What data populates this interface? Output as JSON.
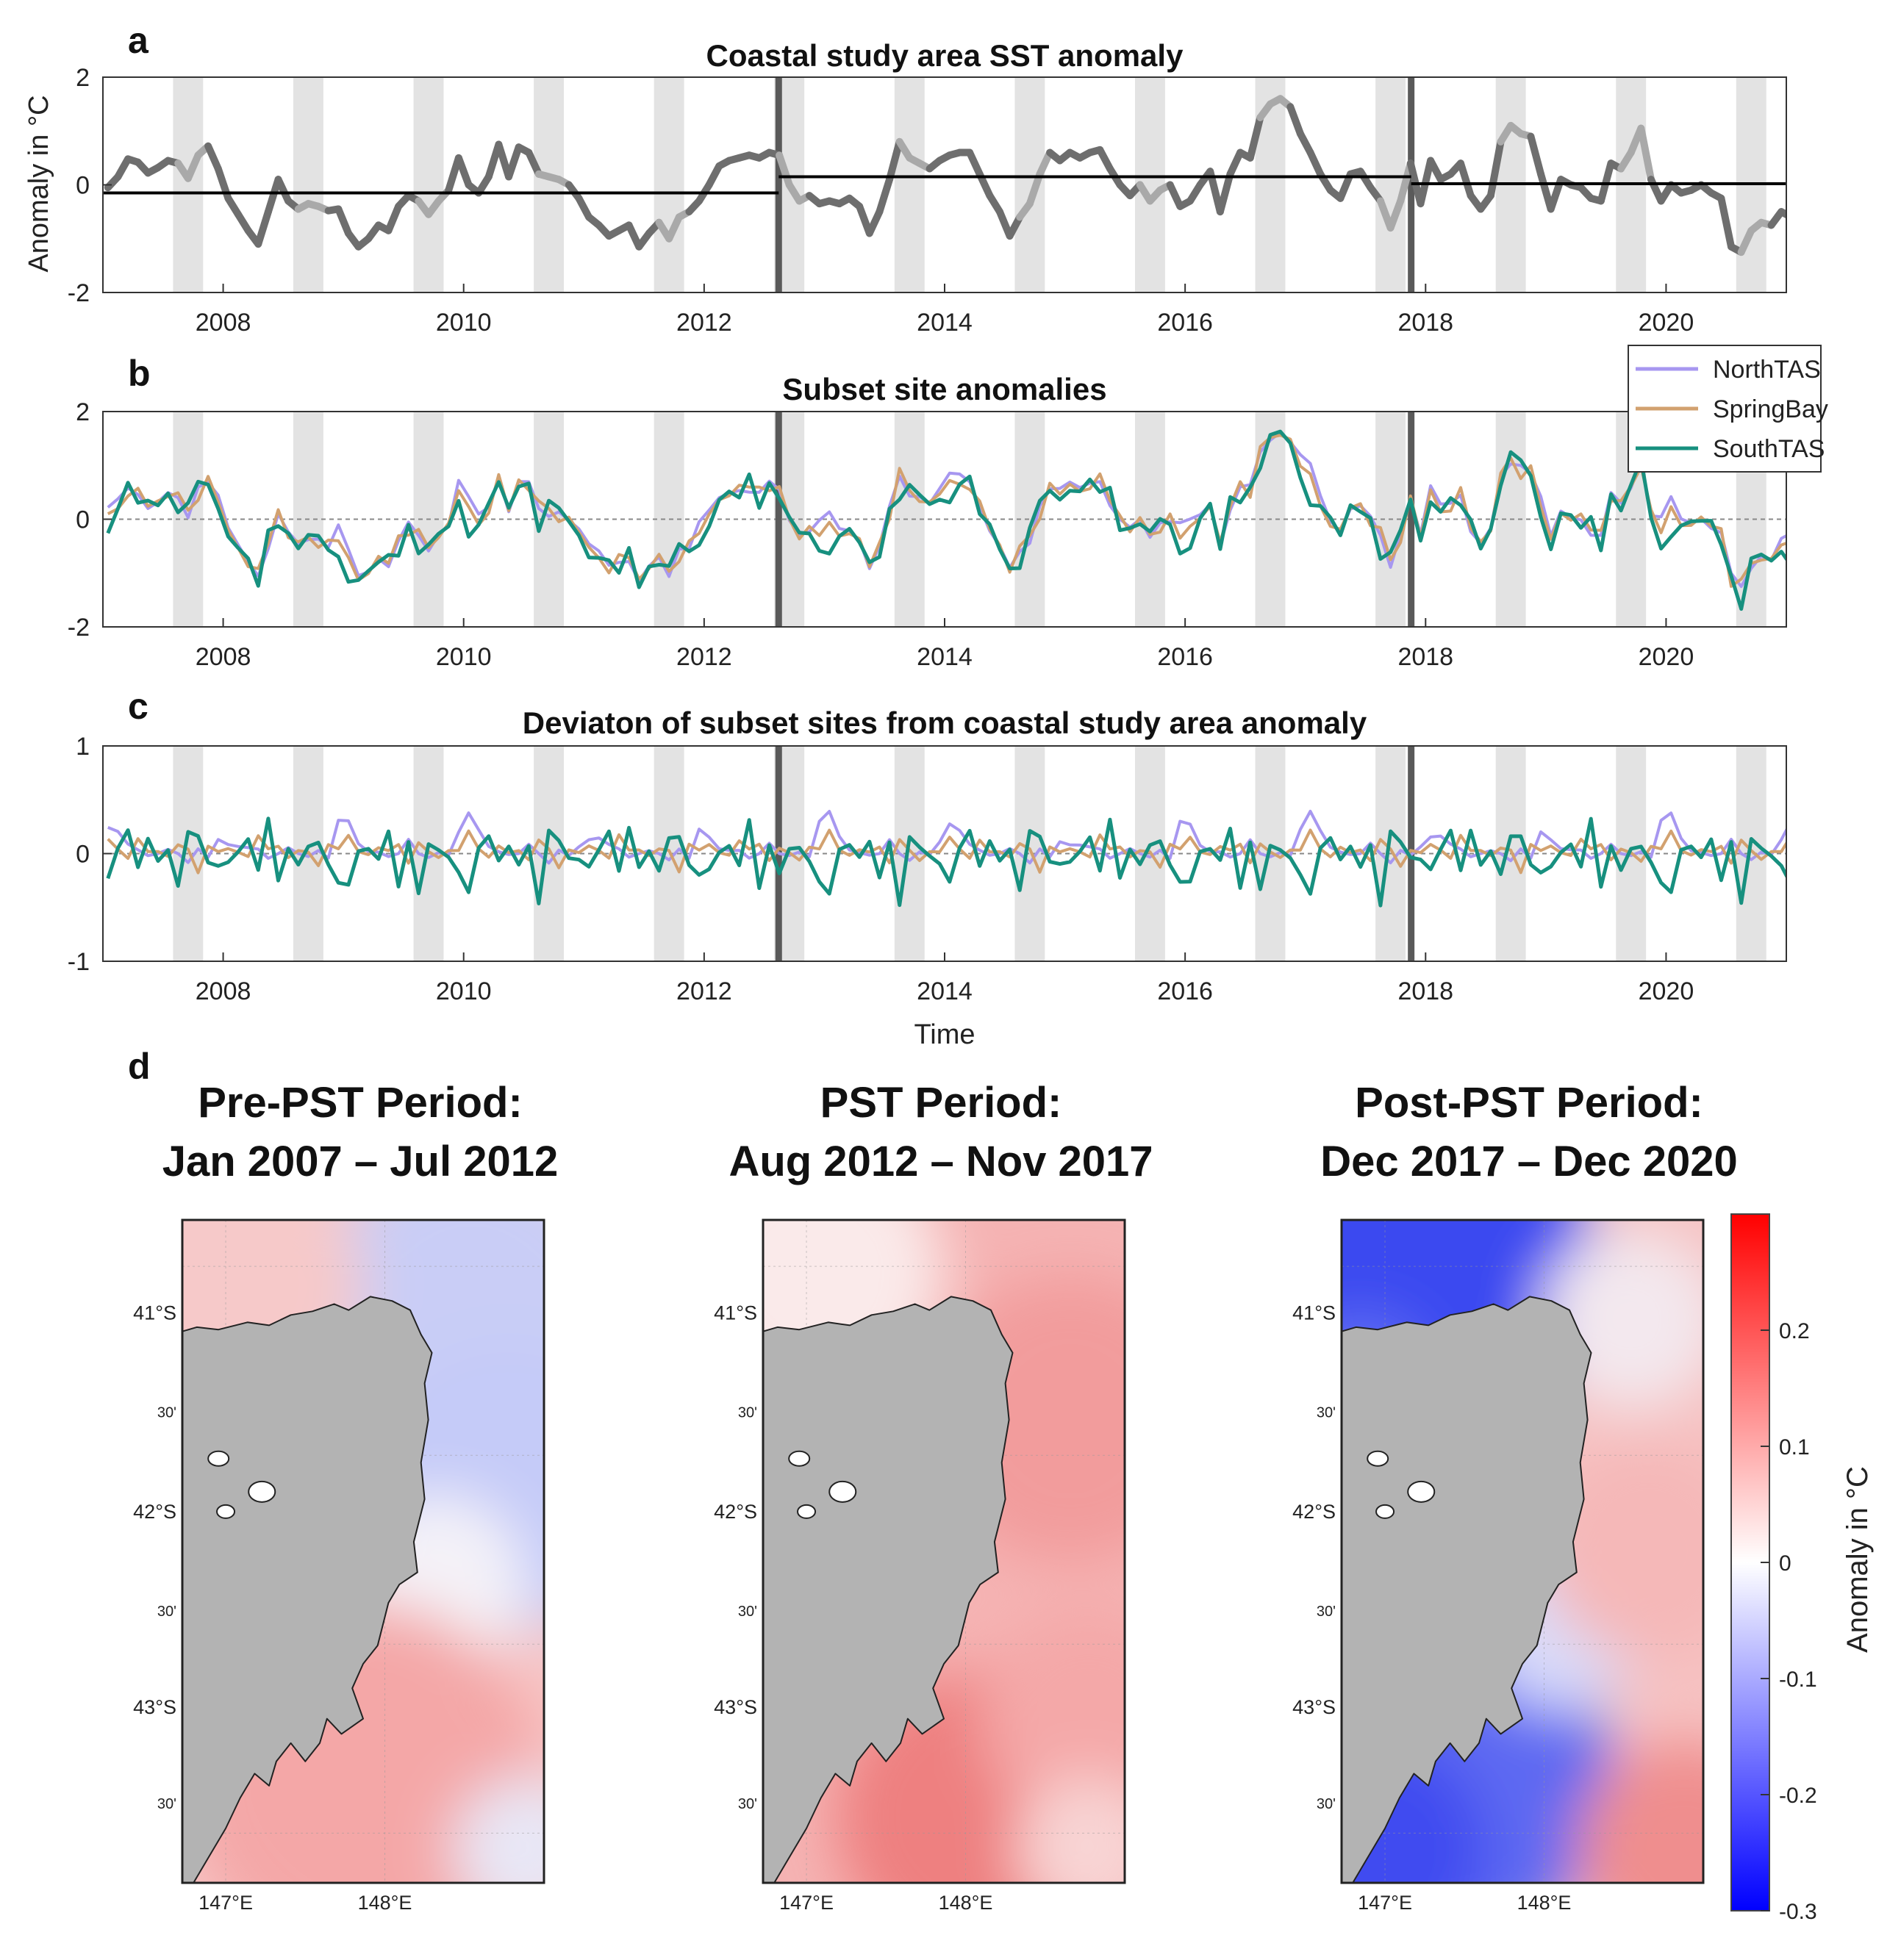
{
  "colors": {
    "coastal": "#6e6e6e",
    "coastal_light": "#a9a9a9",
    "shade": "#e3e3e3",
    "divider": "#5a5a5a",
    "mean": "#000000",
    "north": "#a797f0",
    "spring": "#d2a16f",
    "south": "#17907f",
    "land": "#b3b3b3",
    "cbar_top": "#ff0000",
    "cbar_bottom": "#0000ff"
  },
  "panel_letters": [
    "a",
    "b",
    "c",
    "d"
  ],
  "chart_data": [
    {
      "id": "a",
      "type": "line",
      "title": "Coastal study area SST anomaly",
      "ylabel": "Anomaly in °C",
      "xlim": [
        2007.0,
        2021.0
      ],
      "ylim": [
        -2,
        2
      ],
      "yticks": [
        -2,
        0,
        2
      ],
      "xticks": [
        2008,
        2010,
        2012,
        2014,
        2016,
        2018,
        2020
      ],
      "shaded_months": "Aug–Oct (grey bands each year)",
      "period_dividers": [
        2012.62,
        2017.88
      ],
      "period_means": [
        {
          "x": [
            2007.0,
            2012.62
          ],
          "y": -0.15
        },
        {
          "x": [
            2012.62,
            2017.88
          ],
          "y": 0.15
        },
        {
          "x": [
            2017.88,
            2021.0
          ],
          "y": 0.02
        }
      ],
      "series": [
        {
          "values": [
            -0.05,
            0.15,
            0.48,
            0.42,
            0.22,
            0.32,
            0.45,
            0.4,
            0.12,
            0.55,
            0.72,
            0.3,
            -0.25,
            -0.55,
            -0.85,
            -1.1,
            -0.5,
            0.1,
            -0.3,
            -0.45,
            -0.35,
            -0.4,
            -0.48,
            -0.45,
            -0.9,
            -1.15,
            -1.0,
            -0.75,
            -0.85,
            -0.4,
            -0.2,
            -0.3,
            -0.55,
            -0.3,
            -0.1,
            0.5,
            0.0,
            -0.15,
            0.15,
            0.75,
            0.15,
            0.7,
            0.6,
            0.2,
            0.15,
            0.1,
            0.0,
            -0.25,
            -0.6,
            -0.75,
            -0.95,
            -0.85,
            -0.75,
            -1.15,
            -0.9,
            -0.7,
            -1.0,
            -0.6,
            -0.5,
            -0.3,
            0.0,
            0.35,
            0.45,
            0.5,
            0.55,
            0.5,
            0.6,
            0.55,
            0.0,
            -0.3,
            -0.2,
            -0.35,
            -0.3,
            -0.35,
            -0.25,
            -0.4,
            -0.9,
            -0.5,
            0.1,
            0.8,
            0.5,
            0.4,
            0.3,
            0.45,
            0.55,
            0.6,
            0.6,
            0.2,
            -0.2,
            -0.5,
            -0.95,
            -0.6,
            -0.35,
            0.2,
            0.6,
            0.45,
            0.6,
            0.5,
            0.6,
            0.65,
            0.3,
            0.0,
            -0.2,
            0.0,
            -0.3,
            -0.1,
            0.0,
            -0.4,
            -0.3,
            0.0,
            0.25,
            -0.5,
            0.2,
            0.6,
            0.5,
            1.25,
            1.5,
            1.6,
            1.45,
            0.95,
            0.6,
            0.2,
            -0.1,
            -0.25,
            0.2,
            0.25,
            -0.05,
            -0.3,
            -0.8,
            -0.3,
            0.4,
            -0.35,
            0.45,
            0.1,
            0.2,
            0.4,
            -0.2,
            -0.45,
            -0.2,
            0.8,
            1.1,
            0.95,
            0.9,
            0.2,
            -0.45,
            0.1,
            0.0,
            -0.05,
            -0.25,
            -0.3,
            0.4,
            0.3,
            0.6,
            1.05,
            0.1,
            -0.3,
            0.0,
            -0.15,
            -0.1,
            0.0,
            -0.15,
            -0.25,
            -1.15,
            -1.25,
            -0.85,
            -0.7,
            -0.75,
            -0.5,
            -0.6,
            0.0,
            0.55,
            0.4,
            -0.15,
            -0.2,
            0.5,
            0.15
          ]
        }
      ]
    },
    {
      "id": "b",
      "type": "line",
      "title": "Subset site anomalies",
      "ylim": [
        -2,
        2
      ],
      "yticks": [
        -2,
        0,
        2
      ],
      "xlim": [
        2007.0,
        2021.0
      ],
      "xticks": [
        2008,
        2010,
        2012,
        2014,
        2016,
        2018,
        2020
      ],
      "legend_position": "top-right",
      "series": [
        {
          "name": "NorthTAS",
          "offset": [
            0.45,
            0.25,
            0.1,
            0.05,
            -0.05,
            0.0,
            0.15,
            0.0,
            -0.1,
            0.05,
            -0.05,
            0.35
          ]
        },
        {
          "name": "SpringBay",
          "offset": [
            0.25,
            0.05,
            -0.05,
            0.2,
            0.05,
            0.1,
            -0.1,
            0.15,
            0.05,
            -0.2,
            0.1,
            0.05
          ]
        },
        {
          "name": "SouthTAS",
          "offset": [
            -0.35,
            0.05,
            0.2,
            -0.15,
            0.3,
            -0.3,
            0.1,
            -0.45,
            0.2,
            0.15,
            -0.1,
            -0.25
          ]
        }
      ]
    },
    {
      "id": "c",
      "type": "line",
      "title": "Deviaton of subset sites from coastal study area anomaly",
      "xlabel": "Time",
      "ylim": [
        -1,
        1
      ],
      "yticks": [
        -1,
        0,
        1
      ],
      "xlim": [
        2007.0,
        2021.0
      ],
      "xticks": [
        2008,
        2010,
        2012,
        2014,
        2016,
        2018,
        2020
      ]
    }
  ],
  "maps": [
    {
      "title_line1": "Pre-PST Period:",
      "title_line2": "Jan 2007 – Jul 2012",
      "pattern": "pre"
    },
    {
      "title_line1": "PST Period:",
      "title_line2": "Aug 2012 – Nov 2017",
      "pattern": "pst"
    },
    {
      "title_line1": "Post-PST Period:",
      "title_line2": "Dec 2017 – Dec 2020",
      "pattern": "post"
    }
  ],
  "map_axes": {
    "lat_labels": [
      "41°S",
      "30'",
      "42°S",
      "30'",
      "43°S",
      "30'"
    ],
    "lon_labels": [
      "147°E",
      "148°E"
    ]
  },
  "colorbar": {
    "label": "Anomaly in °C",
    "ticks": [
      "0.2",
      "0.1",
      "0",
      "-0.1",
      "-0.2",
      "-0.3"
    ],
    "range": [
      -0.3,
      0.3
    ]
  }
}
